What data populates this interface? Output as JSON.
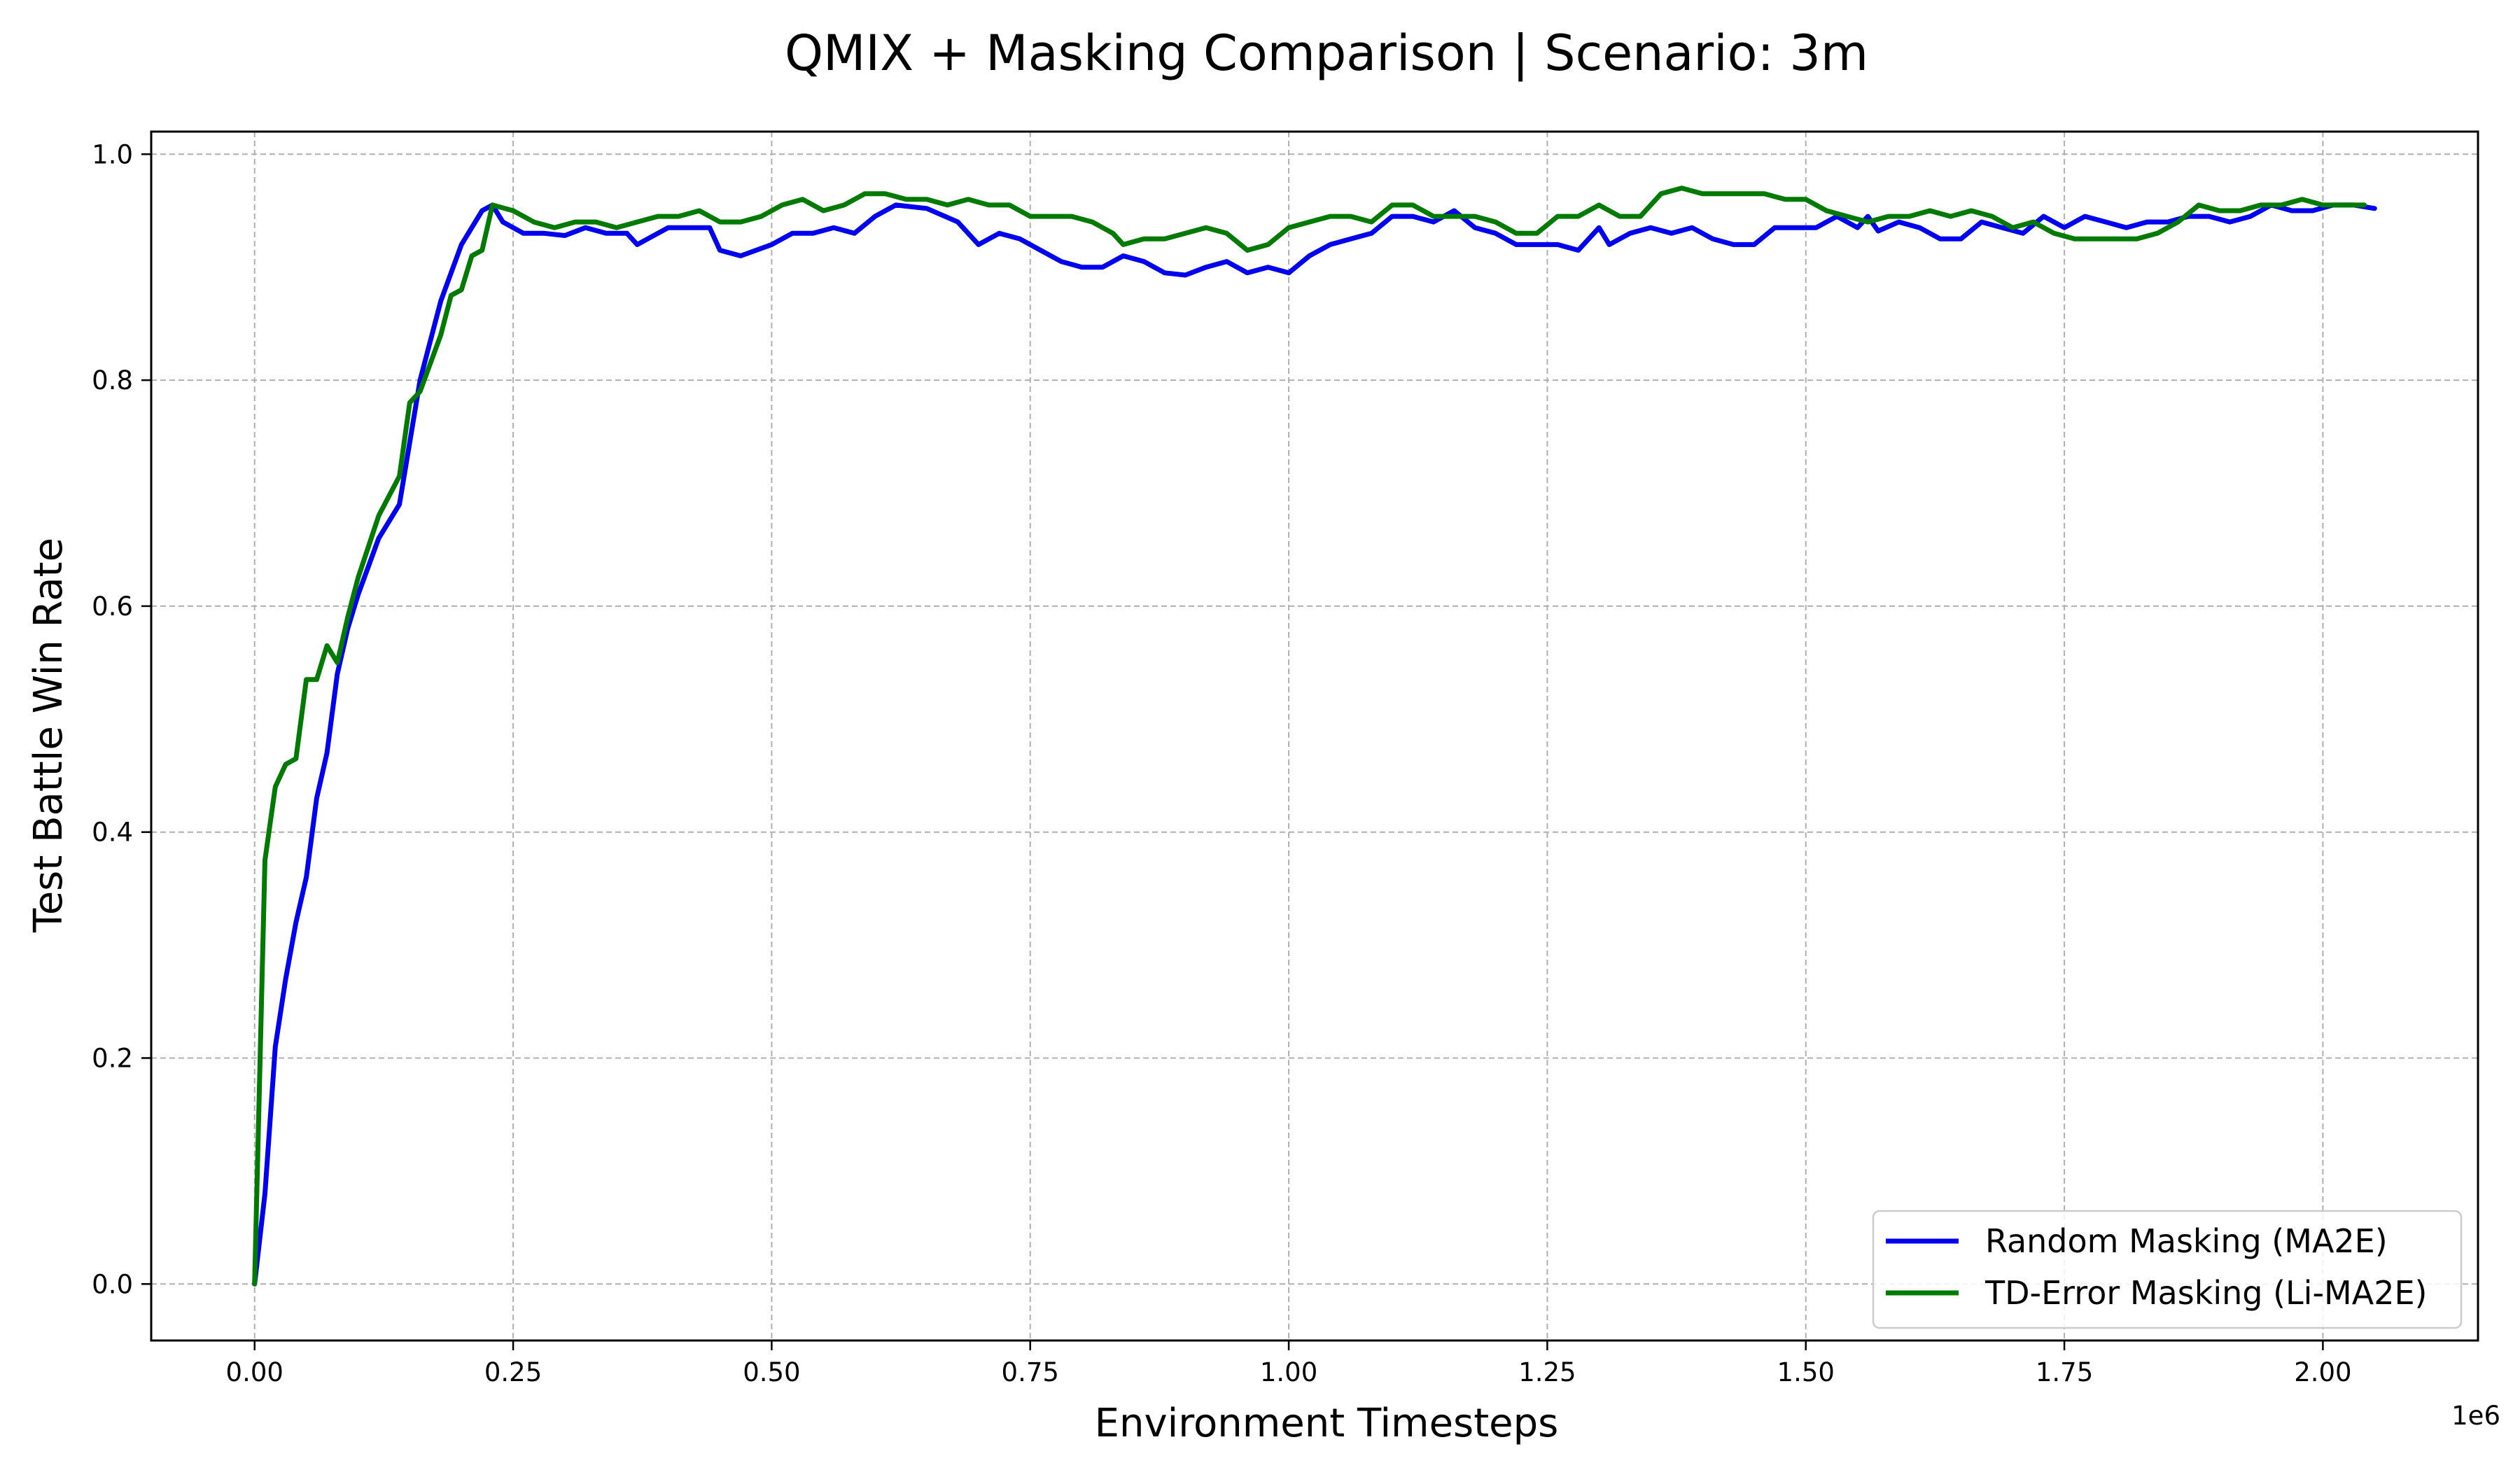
{
  "chart_data": {
    "type": "line",
    "title": "QMIX + Masking Comparison | Scenario: 3m",
    "xlabel": "Environment Timesteps",
    "ylabel": "Test Battle Win Rate",
    "x_offset_label": "1e6",
    "xlim": [
      -0.1,
      2.15
    ],
    "ylim": [
      -0.05,
      1.02
    ],
    "xticks": [
      0.0,
      0.25,
      0.5,
      0.75,
      1.0,
      1.25,
      1.5,
      1.75,
      2.0
    ],
    "xtick_labels": [
      "0.00",
      "0.25",
      "0.50",
      "0.75",
      "1.00",
      "1.25",
      "1.50",
      "1.75",
      "2.00"
    ],
    "yticks": [
      0.0,
      0.2,
      0.4,
      0.6,
      0.8,
      1.0
    ],
    "ytick_labels": [
      "0.0",
      "0.2",
      "0.4",
      "0.6",
      "0.8",
      "1.0"
    ],
    "grid": true,
    "legend_position": "lower-right",
    "series": [
      {
        "name": "Random Masking (MA2E)",
        "color": "#0000ee",
        "points": [
          [
            0.0,
            0.0
          ],
          [
            0.01,
            0.08
          ],
          [
            0.02,
            0.21
          ],
          [
            0.03,
            0.27
          ],
          [
            0.04,
            0.32
          ],
          [
            0.05,
            0.36
          ],
          [
            0.06,
            0.43
          ],
          [
            0.07,
            0.47
          ],
          [
            0.08,
            0.54
          ],
          [
            0.09,
            0.58
          ],
          [
            0.1,
            0.61
          ],
          [
            0.12,
            0.66
          ],
          [
            0.14,
            0.69
          ],
          [
            0.16,
            0.8
          ],
          [
            0.18,
            0.87
          ],
          [
            0.2,
            0.92
          ],
          [
            0.22,
            0.95
          ],
          [
            0.23,
            0.955
          ],
          [
            0.24,
            0.94
          ],
          [
            0.26,
            0.93
          ],
          [
            0.28,
            0.93
          ],
          [
            0.3,
            0.928
          ],
          [
            0.32,
            0.935
          ],
          [
            0.34,
            0.93
          ],
          [
            0.36,
            0.93
          ],
          [
            0.37,
            0.92
          ],
          [
            0.38,
            0.925
          ],
          [
            0.4,
            0.935
          ],
          [
            0.42,
            0.935
          ],
          [
            0.44,
            0.935
          ],
          [
            0.45,
            0.915
          ],
          [
            0.47,
            0.91
          ],
          [
            0.5,
            0.92
          ],
          [
            0.52,
            0.93
          ],
          [
            0.54,
            0.93
          ],
          [
            0.56,
            0.935
          ],
          [
            0.58,
            0.93
          ],
          [
            0.6,
            0.945
          ],
          [
            0.62,
            0.955
          ],
          [
            0.65,
            0.952
          ],
          [
            0.68,
            0.94
          ],
          [
            0.7,
            0.92
          ],
          [
            0.72,
            0.93
          ],
          [
            0.74,
            0.925
          ],
          [
            0.76,
            0.915
          ],
          [
            0.78,
            0.905
          ],
          [
            0.8,
            0.9
          ],
          [
            0.82,
            0.9
          ],
          [
            0.84,
            0.91
          ],
          [
            0.86,
            0.905
          ],
          [
            0.88,
            0.895
          ],
          [
            0.9,
            0.893
          ],
          [
            0.92,
            0.9
          ],
          [
            0.94,
            0.905
          ],
          [
            0.96,
            0.895
          ],
          [
            0.98,
            0.9
          ],
          [
            1.0,
            0.895
          ],
          [
            1.02,
            0.91
          ],
          [
            1.04,
            0.92
          ],
          [
            1.06,
            0.925
          ],
          [
            1.08,
            0.93
          ],
          [
            1.1,
            0.945
          ],
          [
            1.12,
            0.945
          ],
          [
            1.14,
            0.94
          ],
          [
            1.16,
            0.95
          ],
          [
            1.18,
            0.935
          ],
          [
            1.2,
            0.93
          ],
          [
            1.22,
            0.92
          ],
          [
            1.24,
            0.92
          ],
          [
            1.26,
            0.92
          ],
          [
            1.28,
            0.915
          ],
          [
            1.3,
            0.935
          ],
          [
            1.31,
            0.92
          ],
          [
            1.33,
            0.93
          ],
          [
            1.35,
            0.935
          ],
          [
            1.37,
            0.93
          ],
          [
            1.39,
            0.935
          ],
          [
            1.41,
            0.925
          ],
          [
            1.43,
            0.92
          ],
          [
            1.45,
            0.92
          ],
          [
            1.47,
            0.935
          ],
          [
            1.49,
            0.935
          ],
          [
            1.51,
            0.935
          ],
          [
            1.53,
            0.945
          ],
          [
            1.55,
            0.935
          ],
          [
            1.56,
            0.945
          ],
          [
            1.57,
            0.932
          ],
          [
            1.59,
            0.94
          ],
          [
            1.61,
            0.935
          ],
          [
            1.63,
            0.925
          ],
          [
            1.65,
            0.925
          ],
          [
            1.67,
            0.94
          ],
          [
            1.69,
            0.935
          ],
          [
            1.71,
            0.93
          ],
          [
            1.73,
            0.945
          ],
          [
            1.75,
            0.935
          ],
          [
            1.77,
            0.945
          ],
          [
            1.79,
            0.94
          ],
          [
            1.81,
            0.935
          ],
          [
            1.83,
            0.94
          ],
          [
            1.85,
            0.94
          ],
          [
            1.87,
            0.945
          ],
          [
            1.89,
            0.945
          ],
          [
            1.91,
            0.94
          ],
          [
            1.93,
            0.945
          ],
          [
            1.95,
            0.955
          ],
          [
            1.97,
            0.95
          ],
          [
            1.99,
            0.95
          ],
          [
            2.01,
            0.955
          ],
          [
            2.03,
            0.955
          ],
          [
            2.05,
            0.952
          ]
        ]
      },
      {
        "name": "TD-Error Masking (Li-MA2E)",
        "color": "#007a00",
        "points": [
          [
            0.0,
            0.0
          ],
          [
            0.01,
            0.375
          ],
          [
            0.02,
            0.44
          ],
          [
            0.03,
            0.46
          ],
          [
            0.04,
            0.465
          ],
          [
            0.05,
            0.535
          ],
          [
            0.06,
            0.535
          ],
          [
            0.07,
            0.565
          ],
          [
            0.08,
            0.55
          ],
          [
            0.09,
            0.59
          ],
          [
            0.1,
            0.625
          ],
          [
            0.12,
            0.68
          ],
          [
            0.14,
            0.715
          ],
          [
            0.15,
            0.78
          ],
          [
            0.16,
            0.79
          ],
          [
            0.18,
            0.84
          ],
          [
            0.19,
            0.875
          ],
          [
            0.2,
            0.88
          ],
          [
            0.21,
            0.91
          ],
          [
            0.22,
            0.915
          ],
          [
            0.23,
            0.955
          ],
          [
            0.25,
            0.95
          ],
          [
            0.27,
            0.94
          ],
          [
            0.29,
            0.935
          ],
          [
            0.31,
            0.94
          ],
          [
            0.33,
            0.94
          ],
          [
            0.35,
            0.935
          ],
          [
            0.37,
            0.94
          ],
          [
            0.39,
            0.945
          ],
          [
            0.41,
            0.945
          ],
          [
            0.43,
            0.95
          ],
          [
            0.45,
            0.94
          ],
          [
            0.47,
            0.94
          ],
          [
            0.49,
            0.945
          ],
          [
            0.51,
            0.955
          ],
          [
            0.53,
            0.96
          ],
          [
            0.55,
            0.95
          ],
          [
            0.57,
            0.955
          ],
          [
            0.59,
            0.965
          ],
          [
            0.61,
            0.965
          ],
          [
            0.63,
            0.96
          ],
          [
            0.65,
            0.96
          ],
          [
            0.67,
            0.955
          ],
          [
            0.69,
            0.96
          ],
          [
            0.71,
            0.955
          ],
          [
            0.73,
            0.955
          ],
          [
            0.75,
            0.945
          ],
          [
            0.77,
            0.945
          ],
          [
            0.79,
            0.945
          ],
          [
            0.81,
            0.94
          ],
          [
            0.83,
            0.93
          ],
          [
            0.84,
            0.92
          ],
          [
            0.86,
            0.925
          ],
          [
            0.88,
            0.925
          ],
          [
            0.9,
            0.93
          ],
          [
            0.92,
            0.935
          ],
          [
            0.94,
            0.93
          ],
          [
            0.96,
            0.915
          ],
          [
            0.98,
            0.92
          ],
          [
            1.0,
            0.935
          ],
          [
            1.02,
            0.94
          ],
          [
            1.04,
            0.945
          ],
          [
            1.06,
            0.945
          ],
          [
            1.08,
            0.94
          ],
          [
            1.1,
            0.955
          ],
          [
            1.12,
            0.955
          ],
          [
            1.14,
            0.945
          ],
          [
            1.16,
            0.945
          ],
          [
            1.18,
            0.945
          ],
          [
            1.2,
            0.94
          ],
          [
            1.22,
            0.93
          ],
          [
            1.24,
            0.93
          ],
          [
            1.26,
            0.945
          ],
          [
            1.28,
            0.945
          ],
          [
            1.3,
            0.955
          ],
          [
            1.32,
            0.945
          ],
          [
            1.34,
            0.945
          ],
          [
            1.36,
            0.965
          ],
          [
            1.38,
            0.97
          ],
          [
            1.4,
            0.965
          ],
          [
            1.42,
            0.965
          ],
          [
            1.44,
            0.965
          ],
          [
            1.46,
            0.965
          ],
          [
            1.48,
            0.96
          ],
          [
            1.5,
            0.96
          ],
          [
            1.52,
            0.95
          ],
          [
            1.54,
            0.945
          ],
          [
            1.56,
            0.94
          ],
          [
            1.58,
            0.945
          ],
          [
            1.6,
            0.945
          ],
          [
            1.62,
            0.95
          ],
          [
            1.64,
            0.945
          ],
          [
            1.66,
            0.95
          ],
          [
            1.68,
            0.945
          ],
          [
            1.7,
            0.935
          ],
          [
            1.72,
            0.94
          ],
          [
            1.74,
            0.93
          ],
          [
            1.76,
            0.925
          ],
          [
            1.78,
            0.925
          ],
          [
            1.8,
            0.925
          ],
          [
            1.82,
            0.925
          ],
          [
            1.84,
            0.93
          ],
          [
            1.86,
            0.94
          ],
          [
            1.88,
            0.955
          ],
          [
            1.9,
            0.95
          ],
          [
            1.92,
            0.95
          ],
          [
            1.94,
            0.955
          ],
          [
            1.96,
            0.955
          ],
          [
            1.98,
            0.96
          ],
          [
            2.0,
            0.955
          ],
          [
            2.02,
            0.955
          ],
          [
            2.04,
            0.955
          ]
        ]
      }
    ]
  }
}
